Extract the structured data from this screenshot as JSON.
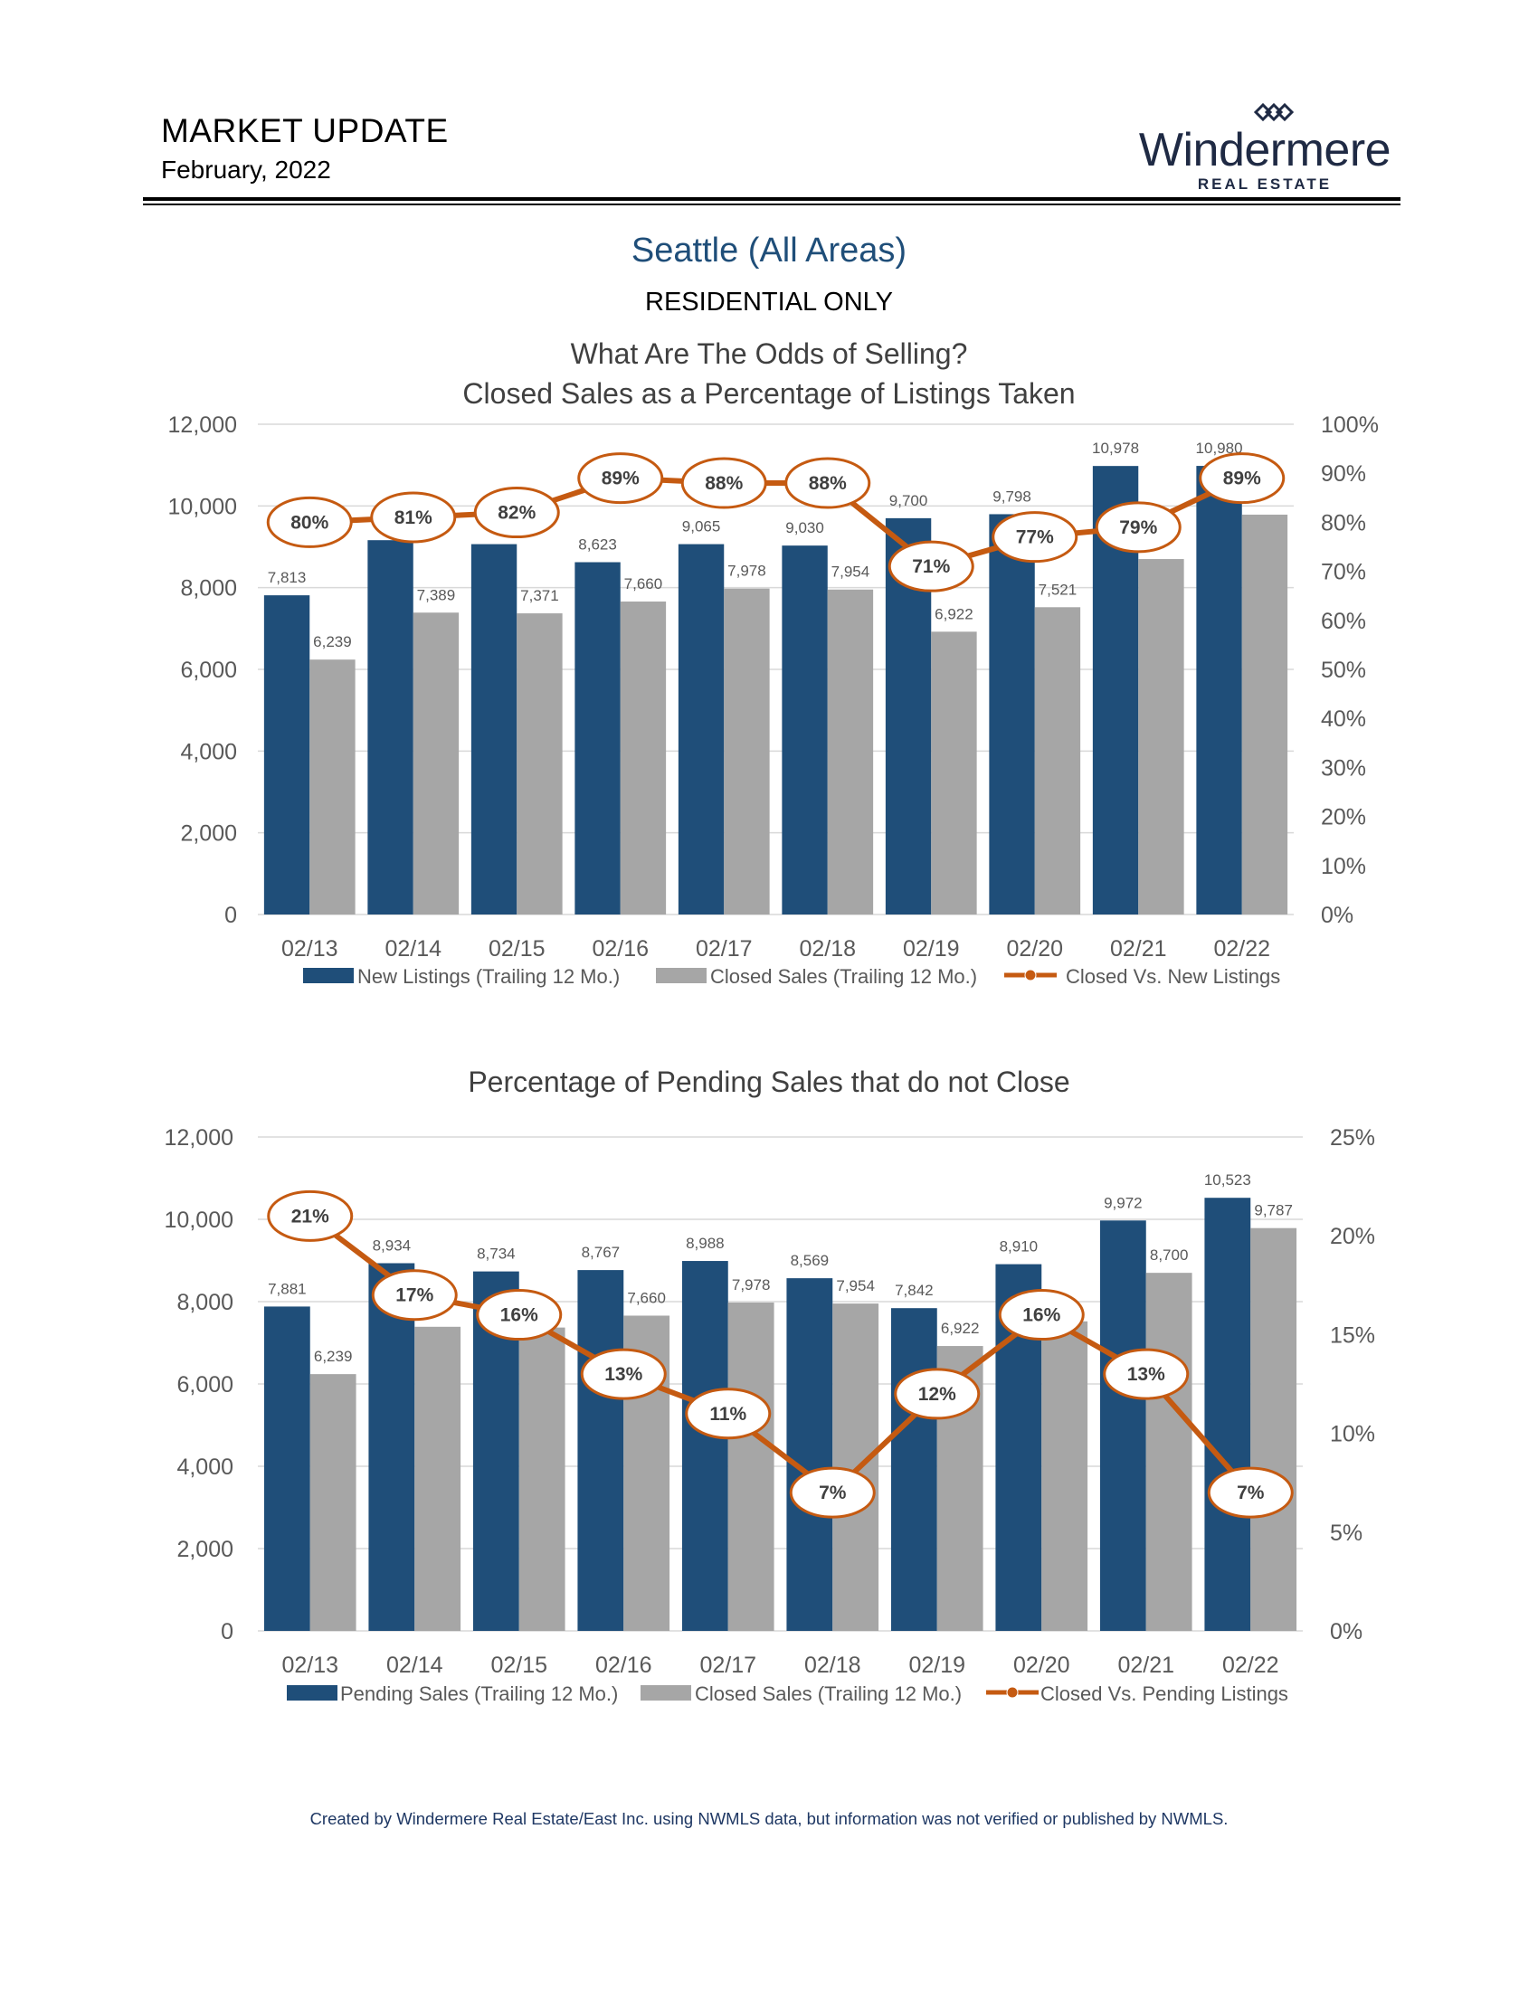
{
  "header": {
    "title": "MARKET UPDATE",
    "date": "February, 2022",
    "logo_word": "Windermere",
    "logo_sub": "REAL ESTATE"
  },
  "area_title": "Seattle (All Areas)",
  "subtitle": "RESIDENTIAL ONLY",
  "footer": "Created by Windermere Real Estate/East Inc. using NWMLS data, but information was not verified or published by NWMLS.",
  "colors": {
    "bar_primary": "#1f4e79",
    "bar_secondary": "#a6a6a6",
    "line": "#c55a11",
    "gridline": "#d9d9d9",
    "axis_text": "#595959",
    "title_text": "#404040"
  },
  "chart_data": [
    {
      "type": "bar",
      "title": "What Are The Odds of Selling?",
      "subtitle": "Closed Sales as a Percentage of Listings Taken",
      "categories": [
        "02/13",
        "02/14",
        "02/15",
        "02/16",
        "02/17",
        "02/18",
        "02/19",
        "02/20",
        "02/21",
        "02/22"
      ],
      "y_ticks": [
        "12,000",
        "10,000",
        "8,000",
        "6,000",
        "4,000",
        "2,000",
        "0"
      ],
      "y2_ticks": [
        "100%",
        "90%",
        "80%",
        "70%",
        "60%",
        "50%",
        "40%",
        "30%",
        "20%",
        "10%",
        "0%"
      ],
      "ylim": [
        0,
        12000
      ],
      "y2lim": [
        0,
        100
      ],
      "grid": true,
      "legend_position": "bottom",
      "series": [
        {
          "name": "New Listings (Trailing 12 Mo.)",
          "kind": "bar",
          "axis": "left",
          "values": [
            7813,
            9162,
            9065,
            8623,
            9065,
            9030,
            9700,
            9798,
            10978,
            10980
          ],
          "labels": [
            "7,813",
            "",
            "",
            "8,623",
            "9,065",
            "9,030",
            "9,700",
            "9,798",
            "10,978",
            "10,980"
          ]
        },
        {
          "name": "Closed Sales (Trailing 12 Mo.)",
          "kind": "bar",
          "axis": "left",
          "values": [
            6239,
            7389,
            7371,
            7660,
            7978,
            7954,
            6922,
            7521,
            8700,
            9787
          ],
          "labels": [
            "6,239",
            "7,389",
            "7,371",
            "7,660",
            "7,978",
            "7,954",
            "6,922",
            "7,521",
            "",
            ""
          ]
        },
        {
          "name": "Closed Vs. New Listings",
          "kind": "line",
          "axis": "right",
          "values": [
            80,
            81,
            82,
            89,
            88,
            88,
            71,
            77,
            79,
            89
          ],
          "labels": [
            "80%",
            "81%",
            "82%",
            "89%",
            "88%",
            "88%",
            "71%",
            "77%",
            "79%",
            "89%"
          ]
        }
      ]
    },
    {
      "type": "bar",
      "title": "Percentage of Pending Sales that do not Close",
      "categories": [
        "02/13",
        "02/14",
        "02/15",
        "02/16",
        "02/17",
        "02/18",
        "02/19",
        "02/20",
        "02/21",
        "02/22"
      ],
      "y_ticks": [
        "12,000",
        "10,000",
        "8,000",
        "6,000",
        "4,000",
        "2,000",
        "0"
      ],
      "y2_ticks": [
        "25%",
        "20%",
        "15%",
        "10%",
        "5%",
        "0%"
      ],
      "ylim": [
        0,
        12000
      ],
      "y2lim": [
        0,
        25
      ],
      "grid": true,
      "legend_position": "bottom",
      "series": [
        {
          "name": "Pending Sales (Trailing 12 Mo.)",
          "kind": "bar",
          "axis": "left",
          "values": [
            7881,
            8934,
            8734,
            8767,
            8988,
            8569,
            7842,
            8910,
            9972,
            10523
          ],
          "labels": [
            "7,881",
            "8,934",
            "8,734",
            "8,767",
            "8,988",
            "8,569",
            "7,842",
            "8,910",
            "9,972",
            "10,523"
          ]
        },
        {
          "name": "Closed Sales (Trailing 12 Mo.)",
          "kind": "bar",
          "axis": "left",
          "values": [
            6239,
            7389,
            7371,
            7660,
            7978,
            7954,
            6922,
            7521,
            8700,
            9787
          ],
          "labels": [
            "6,239",
            "",
            "",
            "7,660",
            "7,978",
            "7,954",
            "6,922",
            "",
            "8,700",
            "9,787"
          ]
        },
        {
          "name": "Closed Vs. Pending Listings",
          "kind": "line",
          "axis": "right",
          "values": [
            21,
            17,
            16,
            13,
            11,
            7,
            12,
            16,
            13,
            7
          ],
          "labels": [
            "21%",
            "17%",
            "16%",
            "13%",
            "11%",
            "7%",
            "12%",
            "16%",
            "13%",
            "7%"
          ]
        }
      ]
    }
  ]
}
